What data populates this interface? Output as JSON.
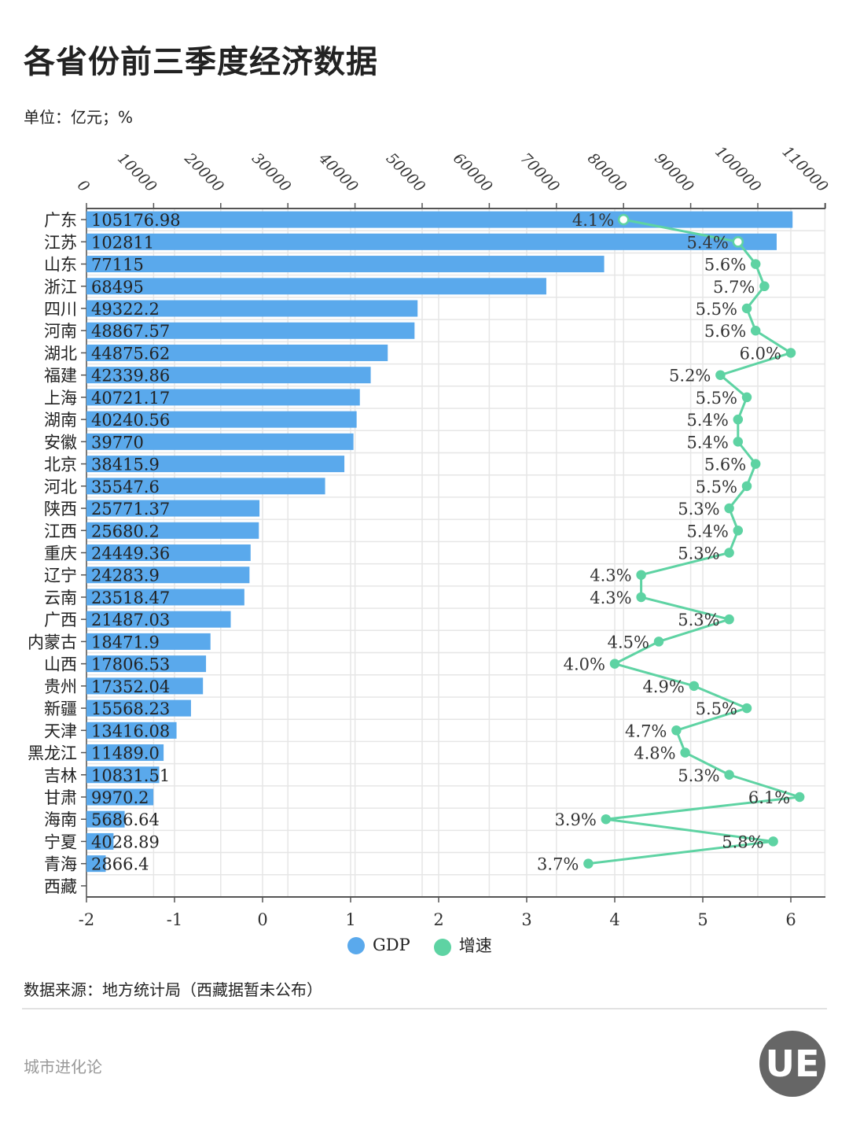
{
  "title": "各省份前三季度经济数据",
  "unit": "单位：亿元；%",
  "source": "数据来源：地方统计局（西藏据暂未公布）",
  "brand": "城市进化论",
  "logo_text": "UE",
  "colors": {
    "gdp": "#5aa9ec",
    "growth": "#5ed3a3"
  },
  "chart_data": {
    "type": "bar",
    "orientation": "horizontal",
    "categories": [
      "广东",
      "江苏",
      "山东",
      "浙江",
      "四川",
      "河南",
      "湖北",
      "福建",
      "上海",
      "湖南",
      "安徽",
      "北京",
      "河北",
      "陕西",
      "江西",
      "重庆",
      "辽宁",
      "云南",
      "广西",
      "内蒙古",
      "山西",
      "贵州",
      "新疆",
      "天津",
      "黑龙江",
      "吉林",
      "甘肃",
      "海南",
      "宁夏",
      "青海",
      "西藏"
    ],
    "series": [
      {
        "name": "GDP",
        "type": "bar",
        "axis": "top",
        "values": [
          105176.98,
          102811,
          77115,
          68495,
          49322.2,
          48867.57,
          44875.62,
          42339.86,
          40721.17,
          40240.56,
          39770,
          38415.9,
          35547.6,
          25771.37,
          25680.2,
          24449.36,
          24283.9,
          23518.47,
          21487.03,
          18471.9,
          17806.53,
          17352.04,
          15568.23,
          13416.08,
          11489.0,
          10831.51,
          9970.2,
          5686.64,
          4028.89,
          2866.4,
          null
        ],
        "labels": [
          "105176.98",
          "102811",
          "77115",
          "68495",
          "49322.2",
          "48867.57",
          "44875.62",
          "42339.86",
          "40721.17",
          "40240.56",
          "39770",
          "38415.9",
          "35547.6",
          "25771.37",
          "25680.2",
          "24449.36",
          "24283.9",
          "23518.47",
          "21487.03",
          "18471.9",
          "17806.53",
          "17352.04",
          "15568.23",
          "13416.08",
          "11489.0",
          "10831.51",
          "9970.2",
          "5686.64",
          "4028.89",
          "2866.4",
          ""
        ]
      },
      {
        "name": "增速",
        "type": "line",
        "axis": "bottom",
        "values": [
          4.1,
          5.4,
          5.6,
          5.7,
          5.5,
          5.6,
          6.0,
          5.2,
          5.5,
          5.4,
          5.4,
          5.6,
          5.5,
          5.3,
          5.4,
          5.3,
          4.3,
          4.3,
          5.3,
          4.5,
          4.0,
          4.9,
          5.5,
          4.7,
          4.8,
          5.3,
          6.1,
          3.9,
          5.8,
          3.7,
          null
        ],
        "labels": [
          "4.1%",
          "5.4%",
          "5.6%",
          "5.7%",
          "5.5%",
          "5.6%",
          "6.0%",
          "5.2%",
          "5.5%",
          "5.4%",
          "5.4%",
          "5.6%",
          "5.5%",
          "5.3%",
          "5.4%",
          "5.3%",
          "4.3%",
          "4.3%",
          "5.3%",
          "4.5%",
          "4.0%",
          "4.9%",
          "5.5%",
          "4.7%",
          "4.8%",
          "5.3%",
          "6.1%",
          "3.9%",
          "5.8%",
          "3.7%",
          ""
        ]
      }
    ],
    "top_axis": {
      "range": [
        0,
        110000
      ],
      "ticks": [
        "0",
        "10000",
        "20000",
        "30000",
        "40000",
        "50000",
        "60000",
        "70000",
        "80000",
        "90000",
        "100000",
        "110000"
      ]
    },
    "bottom_axis": {
      "range": [
        -2,
        6
      ],
      "ticks": [
        "-2",
        "-1",
        "0",
        "1",
        "2",
        "3",
        "4",
        "5",
        "6"
      ]
    },
    "grid": true,
    "legend": "bottom-center"
  }
}
